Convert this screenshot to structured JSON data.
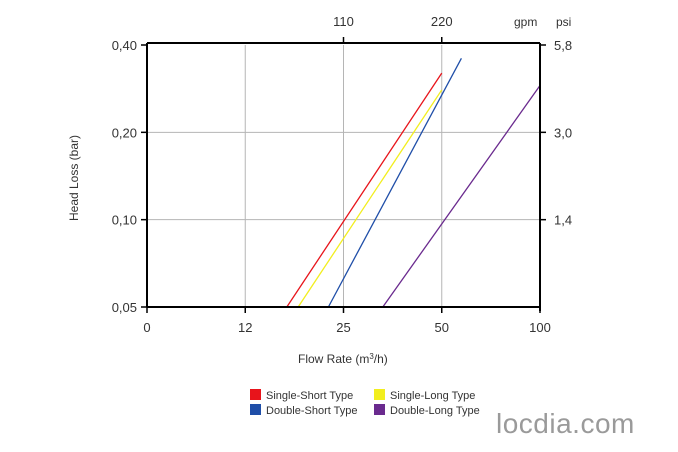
{
  "chart_data": {
    "type": "line",
    "xlabel_main": "Flow Rate (m",
    "xlabel_sup": "3",
    "xlabel_tail": "/h)",
    "ylabel": "Head Loss (bar)",
    "x_ticks": [
      "0",
      "12",
      "25",
      "50",
      "100"
    ],
    "y_ticks": [
      "0,05",
      "0,10",
      "0,20",
      "0,40"
    ],
    "top_ticks": [
      "110",
      "220"
    ],
    "top_unit": "gpm",
    "right_ticks": [
      "1,4",
      "3,0",
      "5,8"
    ],
    "right_unit": "psi",
    "grid": true,
    "legend_position": "bottom",
    "series": [
      {
        "name": "Single-Short Type",
        "color": "#e8141b",
        "x": [
          17.5,
          50
        ],
        "y": [
          0.05,
          0.32
        ]
      },
      {
        "name": "Single-Long Type",
        "color": "#f2ee1e",
        "x": [
          19,
          50
        ],
        "y": [
          0.05,
          0.28
        ]
      },
      {
        "name": "Double-Short Type",
        "color": "#1f4ea8",
        "x": [
          23,
          60
        ],
        "y": [
          0.05,
          0.36
        ]
      },
      {
        "name": "Double-Long Type",
        "color": "#6a2a8e",
        "x": [
          35,
          100
        ],
        "y": [
          0.05,
          0.29
        ]
      }
    ]
  },
  "watermark": "locdia.com"
}
